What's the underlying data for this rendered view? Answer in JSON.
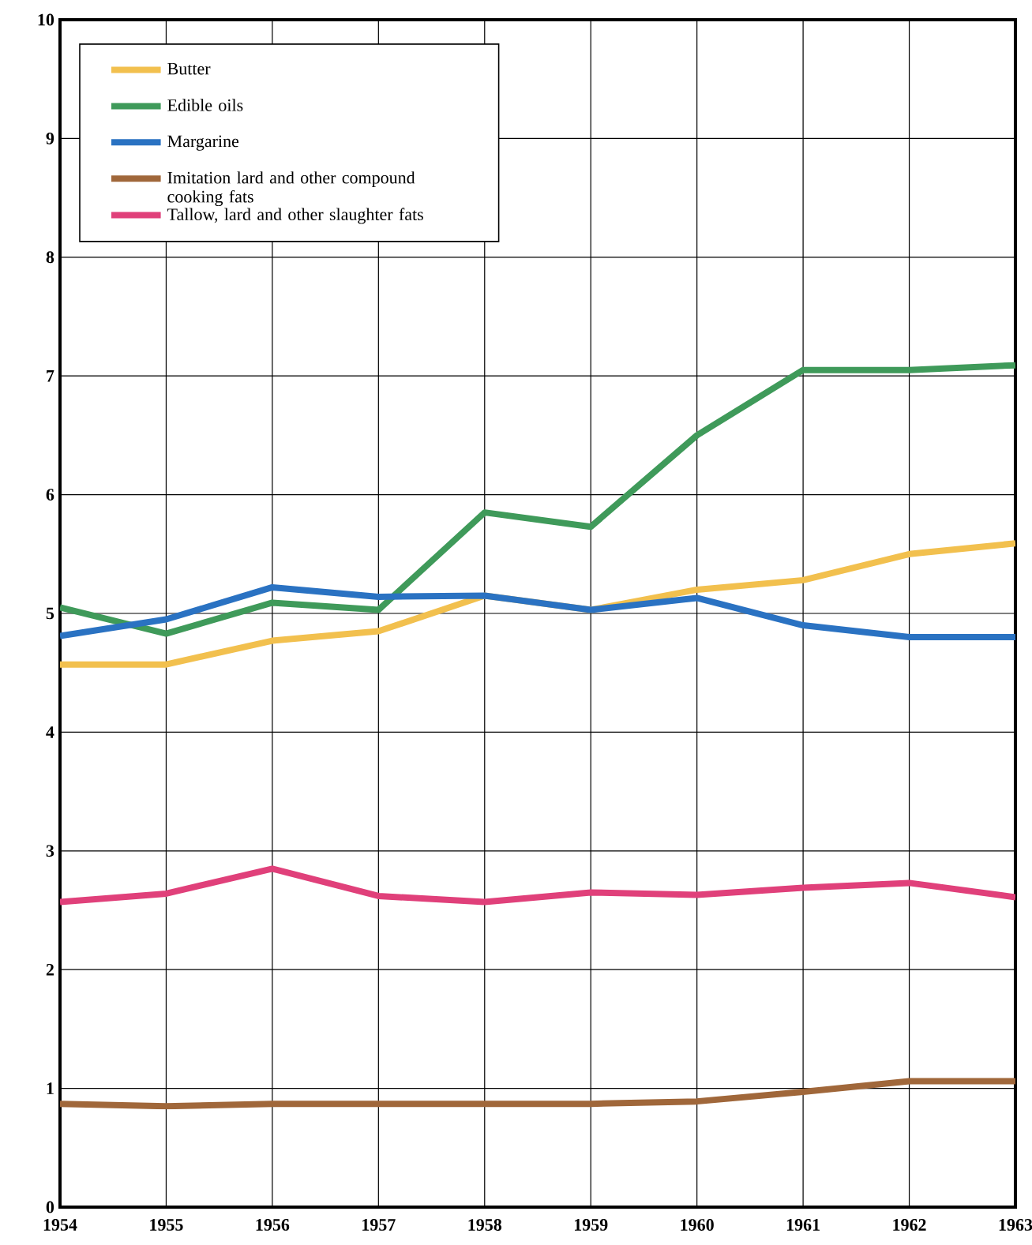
{
  "chart_data": {
    "type": "line",
    "x": [
      1954,
      1955,
      1956,
      1957,
      1958,
      1959,
      1960,
      1961,
      1962,
      1963
    ],
    "series": [
      {
        "name": "Butter",
        "color": "#f2c04e",
        "values": [
          4.57,
          4.57,
          4.77,
          4.85,
          5.15,
          5.03,
          5.2,
          5.28,
          5.5,
          5.59
        ]
      },
      {
        "name": "Edible oils",
        "color": "#3f9a5a",
        "values": [
          5.05,
          4.83,
          5.09,
          5.03,
          5.85,
          5.73,
          6.5,
          7.05,
          7.05,
          7.09
        ]
      },
      {
        "name": "Margarine",
        "color": "#2a72c2",
        "values": [
          4.81,
          4.95,
          5.22,
          5.14,
          5.15,
          5.03,
          5.13,
          4.9,
          4.8,
          4.8
        ]
      },
      {
        "name": "Imitation lard and other compound cooking fats",
        "color": "#a0673a",
        "values": [
          0.87,
          0.85,
          0.87,
          0.87,
          0.87,
          0.87,
          0.89,
          0.97,
          1.06,
          1.06
        ]
      },
      {
        "name": "Tallow, lard and other slaughter fats",
        "color": "#e0407a",
        "values": [
          2.57,
          2.64,
          2.85,
          2.62,
          2.57,
          2.65,
          2.63,
          2.69,
          2.73,
          2.61
        ]
      }
    ],
    "xlim": [
      1954,
      1963
    ],
    "xticks": [
      1954,
      1955,
      1956,
      1957,
      1958,
      1959,
      1960,
      1961,
      1962,
      1963
    ],
    "ylim": [
      0,
      10
    ],
    "yticks": [
      0,
      1,
      2,
      3,
      4,
      5,
      6,
      7,
      8,
      9,
      10
    ],
    "grid": true,
    "legend": "top left",
    "marker": "none",
    "line_style": "solid"
  }
}
